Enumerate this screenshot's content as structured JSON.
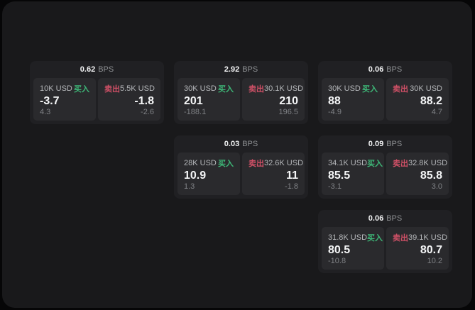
{
  "unit": "BPS",
  "labels": {
    "buy": "买入",
    "sell": "卖出"
  },
  "colors": {
    "buy": "#3eb878",
    "sell": "#cf5066"
  },
  "cards": [
    {
      "bps": "0.62",
      "buy": {
        "amount": "10K USD",
        "value": "-3.7",
        "delta": "4.3"
      },
      "sell": {
        "amount": "5.5K USD",
        "value": "-1.8",
        "delta": "-2.6"
      }
    },
    {
      "bps": "2.92",
      "buy": {
        "amount": "30K USD",
        "value": "201",
        "delta": "-188.1"
      },
      "sell": {
        "amount": "30.1K USD",
        "value": "210",
        "delta": "196.5"
      }
    },
    {
      "bps": "0.06",
      "buy": {
        "amount": "30K USD",
        "value": "88",
        "delta": "-4.9"
      },
      "sell": {
        "amount": "30K USD",
        "value": "88.2",
        "delta": "4.7"
      }
    },
    {
      "bps": "0.03",
      "buy": {
        "amount": "28K USD",
        "value": "10.9",
        "delta": "1.3"
      },
      "sell": {
        "amount": "32.6K USD",
        "value": "11",
        "delta": "-1.8"
      }
    },
    {
      "bps": "0.09",
      "buy": {
        "amount": "34.1K USD",
        "value": "85.5",
        "delta": "-3.1"
      },
      "sell": {
        "amount": "32.8K USD",
        "value": "85.8",
        "delta": "3.0"
      }
    },
    {
      "bps": "0.06",
      "buy": {
        "amount": "31.8K USD",
        "value": "80.5",
        "delta": "-10.8"
      },
      "sell": {
        "amount": "39.1K USD",
        "value": "80.7",
        "delta": "10.2"
      }
    }
  ]
}
